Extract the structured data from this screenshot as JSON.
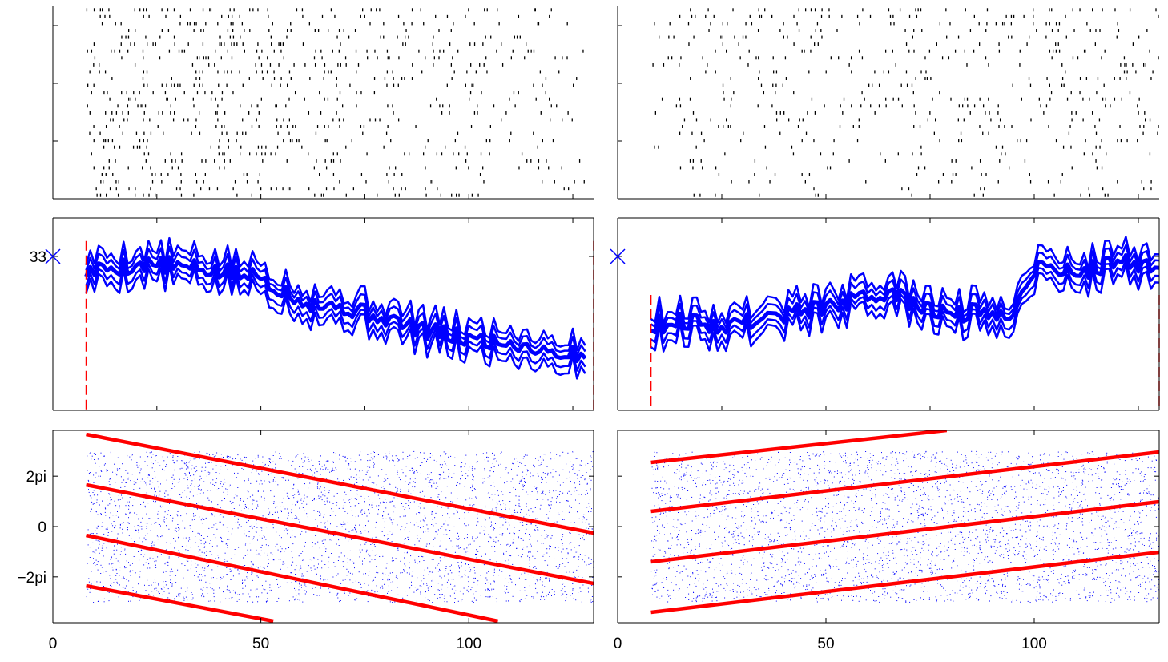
{
  "colors": {
    "background": "#ffffff",
    "axis": "#000000",
    "raster": "#000000",
    "trace": "#0000ff",
    "fit_line": "#ff0000",
    "phase_points": "#0000ff",
    "marker": "#0000ff"
  },
  "chart_data": [
    {
      "id": "raster-left",
      "type": "scatter",
      "title": "",
      "xlabel": "",
      "ylabel": "",
      "xlim": [
        0,
        130
      ],
      "ylim": [
        0,
        1
      ],
      "xticks": [
        0,
        25,
        50,
        75,
        100,
        125
      ],
      "yticks": [
        0.3,
        0.6,
        0.9
      ],
      "tick_labels_x": [],
      "tick_labels_y": [],
      "rows": 28,
      "x_range": [
        8,
        128
      ],
      "density_start": 0.55,
      "density_end": 0.18,
      "seed": 11,
      "note_grid": "off"
    },
    {
      "id": "raster-right",
      "type": "scatter",
      "title": "",
      "xlabel": "",
      "ylabel": "",
      "xlim": [
        0,
        130
      ],
      "ylim": [
        0,
        1
      ],
      "xticks": [
        0,
        25,
        50,
        75,
        100,
        125
      ],
      "yticks": [
        0.3,
        0.6,
        0.9
      ],
      "tick_labels_x": [],
      "tick_labels_y": [],
      "rows": 28,
      "x_range": [
        8,
        130
      ],
      "density_start": 0.22,
      "density_end": 0.26,
      "seed": 23,
      "note_grid": "off"
    },
    {
      "id": "trace-left",
      "type": "line",
      "title": "",
      "xlabel": "",
      "ylabel": "",
      "xlim": [
        0,
        130
      ],
      "ylim": [
        27,
        34.5
      ],
      "xticks": [
        0,
        25,
        50,
        75,
        100,
        125
      ],
      "yticks": [
        33
      ],
      "ytick_labels": [
        "33"
      ],
      "marker": {
        "x": 0,
        "y": 33,
        "symbol": "x"
      },
      "event_lines": [
        8,
        130
      ],
      "x": [
        8,
        15,
        25,
        35,
        45,
        50,
        55,
        60,
        65,
        70,
        75,
        80,
        85,
        90,
        95,
        100,
        105,
        110,
        115,
        120,
        125,
        128
      ],
      "series": [
        {
          "values": [
            32.4,
            32.6,
            32.7,
            32.5,
            32.3,
            32.2,
            31.7,
            31.3,
            31.1,
            31.0,
            30.8,
            30.6,
            30.3,
            30.1,
            29.9,
            29.8,
            29.7,
            29.6,
            29.5,
            29.3,
            29.2,
            29.1
          ]
        }
      ],
      "offsets": [
        -0.55,
        -0.3,
        0,
        0.3,
        0.55
      ],
      "noise": 0.35,
      "seed": 5
    },
    {
      "id": "trace-right",
      "type": "line",
      "title": "",
      "xlabel": "",
      "ylabel": "",
      "xlim": [
        0,
        130
      ],
      "ylim": [
        27,
        34.5
      ],
      "xticks": [
        0,
        25,
        50,
        75,
        100,
        125
      ],
      "yticks": [
        33
      ],
      "ytick_labels": [],
      "marker": {
        "x": 0,
        "y": 33,
        "symbol": "x"
      },
      "event_lines": [
        8,
        130
      ],
      "x": [
        8,
        15,
        25,
        35,
        45,
        55,
        60,
        65,
        70,
        75,
        80,
        85,
        90,
        95,
        98,
        100,
        105,
        110,
        115,
        120,
        125,
        130
      ],
      "series": [
        {
          "values": [
            30.3,
            30.5,
            30.3,
            30.6,
            30.9,
            31.2,
            31.4,
            31.6,
            31.2,
            30.9,
            30.8,
            30.8,
            30.8,
            30.9,
            31.8,
            32.6,
            32.5,
            32.4,
            32.6,
            32.8,
            32.7,
            32.6
          ]
        }
      ],
      "offsets": [
        -0.55,
        -0.3,
        0,
        0.3,
        0.55
      ],
      "noise": 0.35,
      "seed": 9
    },
    {
      "id": "phase-left",
      "type": "scatter",
      "title": "",
      "xlabel": "",
      "ylabel": "",
      "xlim": [
        0,
        130
      ],
      "ylim": [
        -12,
        12
      ],
      "xticks": [
        0,
        50,
        100
      ],
      "xtick_labels": [
        "0",
        "50",
        "100"
      ],
      "yticks": [
        -6.283,
        0,
        6.283
      ],
      "ytick_labels": [
        "−2pi",
        "0",
        "2pi"
      ],
      "points_y_range": [
        -9.42,
        9.42
      ],
      "points_x_range": [
        8,
        130
      ],
      "seed": 31,
      "fit_lines": [
        {
          "x": [
            8,
            130
          ],
          "y": [
            11.5,
            -0.8
          ]
        },
        {
          "x": [
            8,
            130
          ],
          "y": [
            5.2,
            -7.1
          ]
        },
        {
          "x": [
            8,
            107
          ],
          "y": [
            -1.1,
            -11.8
          ]
        },
        {
          "x": [
            8,
            53
          ],
          "y": [
            -7.4,
            -11.8
          ]
        }
      ]
    },
    {
      "id": "phase-right",
      "type": "scatter",
      "title": "",
      "xlabel": "",
      "ylabel": "",
      "xlim": [
        0,
        130
      ],
      "ylim": [
        -12,
        12
      ],
      "xticks": [
        0,
        50,
        100
      ],
      "xtick_labels": [
        "0",
        "50",
        "100"
      ],
      "yticks": [
        -6.283,
        0,
        6.283
      ],
      "ytick_labels": [],
      "points_y_range": [
        -9.42,
        9.42
      ],
      "points_x_range": [
        8,
        130
      ],
      "seed": 47,
      "fit_lines": [
        {
          "x": [
            8,
            79
          ],
          "y": [
            8.0,
            12.0
          ]
        },
        {
          "x": [
            8,
            130
          ],
          "y": [
            1.9,
            9.3
          ]
        },
        {
          "x": [
            8,
            130
          ],
          "y": [
            -4.4,
            3.1
          ]
        },
        {
          "x": [
            8,
            130
          ],
          "y": [
            -10.7,
            -3.2
          ]
        }
      ]
    }
  ]
}
